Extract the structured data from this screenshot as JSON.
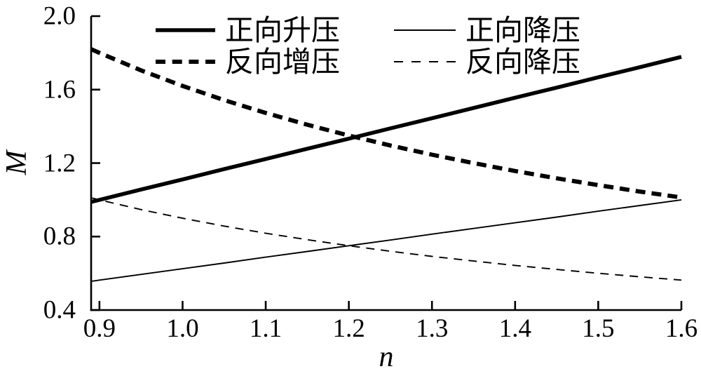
{
  "figure": {
    "background": "#ffffff",
    "line_color": "#000000"
  },
  "chart_data": {
    "type": "line",
    "title": "",
    "xlabel": "n",
    "ylabel": "M",
    "xlim": [
      0.89,
      1.6
    ],
    "ylim": [
      0.4,
      2.0
    ],
    "grid": false,
    "legend_position": "top-inside-two-columns",
    "xticks": [
      0.9,
      1.0,
      1.1,
      1.2,
      1.3,
      1.4,
      1.5,
      1.6
    ],
    "xtick_labels": [
      "0.9",
      "1.0",
      "1.1",
      "1.2",
      "1.3",
      "1.4",
      "1.5",
      "1.6"
    ],
    "yticks": [
      0.4,
      0.8,
      1.2,
      1.6,
      2.0
    ],
    "ytick_labels": [
      "0.4",
      "0.8",
      "1.2",
      "1.6",
      "2.0"
    ],
    "x": [
      0.89,
      0.9,
      0.95,
      1.0,
      1.05,
      1.1,
      1.15,
      1.2,
      1.25,
      1.3,
      1.35,
      1.4,
      1.45,
      1.5,
      1.55,
      1.6
    ],
    "series": [
      {
        "id": "forward-step-up",
        "name": "正向升压",
        "style": "solid",
        "weight": "thick",
        "values": [
          0.989,
          1.0,
          1.056,
          1.111,
          1.167,
          1.222,
          1.278,
          1.333,
          1.389,
          1.444,
          1.5,
          1.556,
          1.611,
          1.667,
          1.722,
          1.778
        ]
      },
      {
        "id": "reverse-step-up",
        "name": "反向增压",
        "style": "dashed",
        "weight": "thick",
        "values": [
          1.82,
          1.8,
          1.705,
          1.62,
          1.543,
          1.473,
          1.409,
          1.35,
          1.296,
          1.246,
          1.2,
          1.157,
          1.117,
          1.08,
          1.045,
          1.013
        ]
      },
      {
        "id": "forward-step-down",
        "name": "正向降压",
        "style": "solid",
        "weight": "thin",
        "values": [
          0.556,
          0.563,
          0.594,
          0.625,
          0.656,
          0.688,
          0.719,
          0.75,
          0.781,
          0.813,
          0.844,
          0.875,
          0.906,
          0.938,
          0.969,
          1.0
        ]
      },
      {
        "id": "reverse-step-down",
        "name": "反向降压",
        "style": "dashed",
        "weight": "thin",
        "values": [
          1.011,
          1.0,
          0.947,
          0.9,
          0.857,
          0.818,
          0.783,
          0.75,
          0.72,
          0.692,
          0.667,
          0.643,
          0.621,
          0.6,
          0.581,
          0.563
        ]
      }
    ]
  }
}
